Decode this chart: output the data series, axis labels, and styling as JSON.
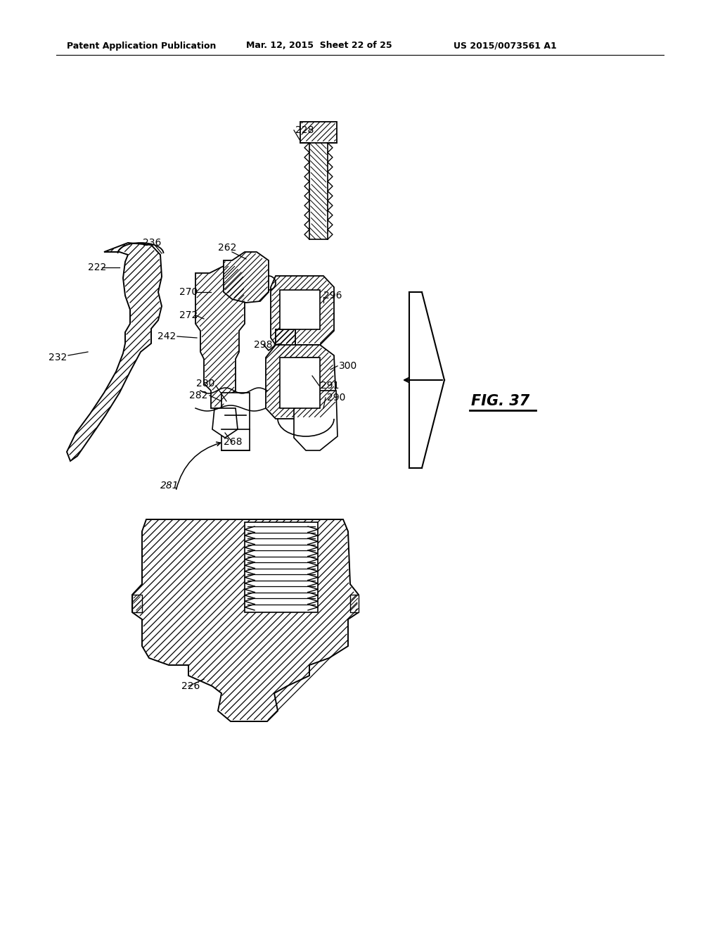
{
  "bg_color": "#ffffff",
  "header_left": "Patent Application Publication",
  "header_mid": "Mar. 12, 2015  Sheet 22 of 25",
  "header_right": "US 2015/0073561 A1",
  "fig_label": "FIG. 37"
}
